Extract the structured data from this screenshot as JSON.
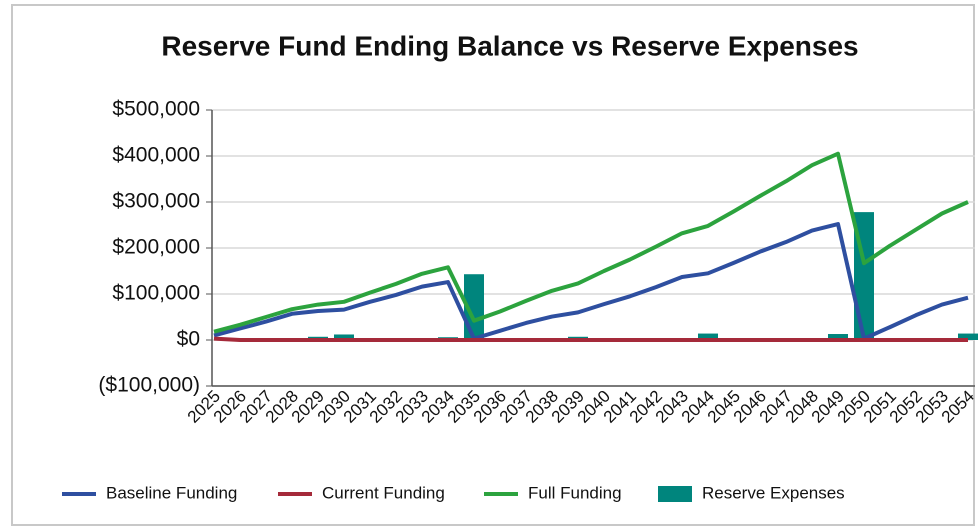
{
  "chart_data": {
    "type": "bar-line",
    "title": "Reserve Fund Ending Balance vs Reserve Expenses",
    "categories": [
      "2025",
      "2026",
      "2027",
      "2028",
      "2029",
      "2030",
      "2031",
      "2032",
      "2033",
      "2034",
      "2035",
      "2036",
      "2037",
      "2038",
      "2039",
      "2040",
      "2041",
      "2042",
      "2043",
      "2044",
      "2045",
      "2046",
      "2047",
      "2048",
      "2049",
      "2050",
      "2051",
      "2052",
      "2053",
      "2054"
    ],
    "series": [
      {
        "name": "Baseline Funding",
        "kind": "line",
        "color": "#2e4fa0",
        "values": [
          10000,
          25000,
          40000,
          57000,
          63000,
          66000,
          83000,
          98000,
          116000,
          126000,
          3000,
          20000,
          37000,
          51000,
          60000,
          78000,
          95000,
          115000,
          137000,
          145000,
          168000,
          192000,
          213000,
          238000,
          252000,
          3000,
          28000,
          54000,
          77000,
          92000
        ]
      },
      {
        "name": "Current Funding",
        "kind": "line",
        "color": "#a52a3a",
        "values": [
          3000,
          0,
          0,
          0,
          0,
          0,
          0,
          0,
          0,
          0,
          0,
          0,
          0,
          0,
          0,
          0,
          0,
          0,
          0,
          0,
          0,
          0,
          0,
          0,
          0,
          0,
          0,
          0,
          0,
          0
        ]
      },
      {
        "name": "Full Funding",
        "kind": "line",
        "color": "#2ca33e",
        "values": [
          18000,
          33000,
          50000,
          67000,
          77000,
          83000,
          103000,
          122000,
          144000,
          158000,
          42000,
          62000,
          85000,
          107000,
          123000,
          150000,
          175000,
          203000,
          232000,
          248000,
          280000,
          313000,
          345000,
          380000,
          405000,
          167000,
          205000,
          240000,
          275000,
          300000
        ]
      },
      {
        "name": "Reserve Expenses",
        "kind": "bar",
        "color": "#00857d",
        "values": [
          0,
          0,
          0,
          0,
          7000,
          12000,
          0,
          0,
          0,
          6000,
          143000,
          0,
          0,
          0,
          7000,
          0,
          0,
          0,
          0,
          14000,
          0,
          0,
          0,
          0,
          13000,
          278000,
          0,
          0,
          0,
          14000
        ]
      }
    ],
    "ylim": [
      -100000,
      500000
    ],
    "yticks": [
      {
        "value": -100000,
        "label": "($100,000)"
      },
      {
        "value": 0,
        "label": "$0"
      },
      {
        "value": 100000,
        "label": "$100,000"
      },
      {
        "value": 200000,
        "label": "$200,000"
      },
      {
        "value": 300000,
        "label": "$300,000"
      },
      {
        "value": 400000,
        "label": "$400,000"
      },
      {
        "value": 500000,
        "label": "$500,000"
      }
    ],
    "grid": true,
    "legend": "bottom"
  }
}
